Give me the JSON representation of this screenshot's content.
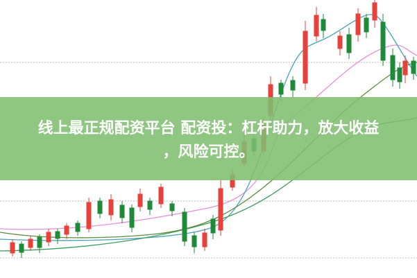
{
  "banner": {
    "lines": [
      "线上最正规配资平台 配资投：杠杆助力，放大收益",
      "，风险可控。"
    ]
  }
}
